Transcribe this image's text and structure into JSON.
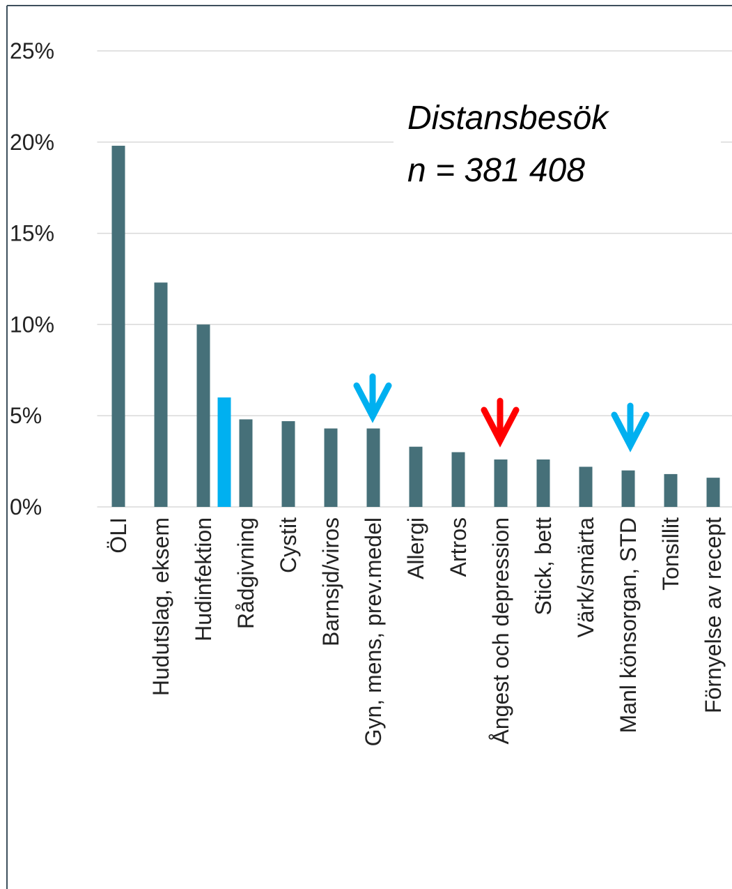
{
  "chart_data": {
    "type": "bar",
    "annotations": [
      "Distansbesök",
      "n = 381 408"
    ],
    "categories": [
      "ÖLI",
      "Hudutslag, eksem",
      "Hudinfektion",
      "Rådgivning",
      "Cystit",
      "Barnsjd/viros",
      "Gyn, mens, prev.medel",
      "Allergi",
      "Artros",
      "Ångest och depression",
      "Stick, bett",
      "Värk/smärta",
      "Manl könsorgan, STD",
      "Tonsillit",
      "Förnyelse av recept"
    ],
    "series": [
      {
        "color": "#467079",
        "values": [
          19.8,
          12.3,
          10.0,
          4.8,
          4.7,
          4.3,
          4.3,
          3.3,
          3.0,
          2.6,
          2.6,
          2.2,
          2.0,
          1.8,
          1.6
        ]
      },
      {
        "color": "#00b0f0",
        "values": [
          null,
          null,
          6.0,
          null,
          null,
          null,
          null,
          null,
          null,
          null,
          null,
          null,
          null,
          null,
          null
        ]
      }
    ],
    "ylim": [
      0,
      25
    ],
    "yticks": [
      {
        "value": 0,
        "label": "0%"
      },
      {
        "value": 5,
        "label": "5%"
      },
      {
        "value": 10,
        "label": "10%"
      },
      {
        "value": 15,
        "label": "15%"
      },
      {
        "value": 20,
        "label": "20%"
      },
      {
        "value": 25,
        "label": "25%"
      }
    ],
    "grid": true
  }
}
